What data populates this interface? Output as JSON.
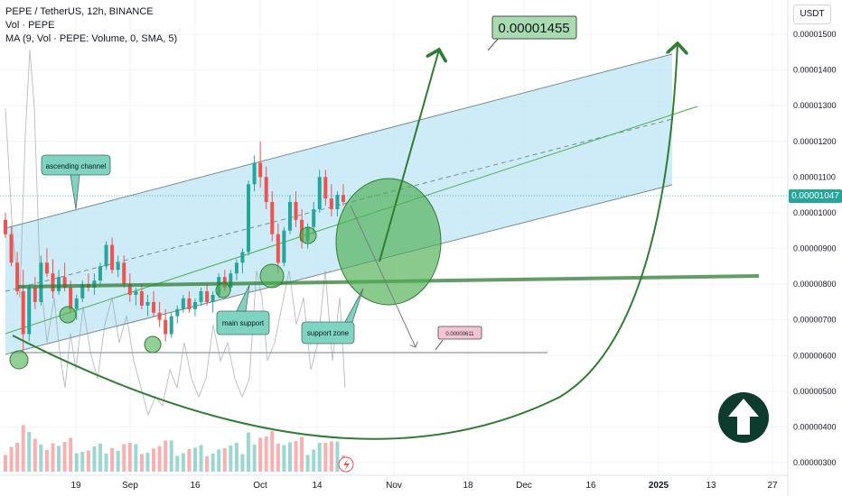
{
  "legend": {
    "symbol_line": "PEPE / TetherUS, 12h, BINANCE",
    "volume_line": "Vol · PEPE",
    "ma_line": "MA (9, Vol · PEPE: Volume, 0, SMA, 5)"
  },
  "currency": "USDT",
  "last_price": "0.00001047",
  "annotations": {
    "target": "0.00001455",
    "ascending_channel": "ascending channel",
    "main_support": "main support",
    "support_zone": "support zone",
    "low_target": "0.00000611"
  },
  "colors": {
    "channel_fill": "#bde4f5",
    "up_candle": "#26a69a",
    "down_candle": "#ef5350",
    "annotation_green": "#2e7d32",
    "label_fill": "#7fd4c1",
    "arrow_badge": "#0d3b2e"
  },
  "chart_data": {
    "type": "candlestick",
    "title": "PEPE / TetherUS, 12h, BINANCE",
    "y_axis": {
      "ticks": [
        "0.00001500",
        "0.00001400",
        "0.00001300",
        "0.00001200",
        "0.00001100",
        "0.00001000",
        "0.00000900",
        "0.00000800",
        "0.00000700",
        "0.00000600",
        "0.00000500",
        "0.00000400",
        "0.00000300"
      ],
      "ylim": [
        2.8e-06,
        1.55e-05
      ]
    },
    "x_axis": {
      "ticks": [
        "19",
        "Sep",
        "16",
        "Oct",
        "14",
        "Nov",
        "18",
        "Dec",
        "16",
        "2025",
        "13",
        "27"
      ]
    },
    "last_price": 1.047e-05,
    "target_price": 1.455e-05,
    "low_target_price": 6.11e-06,
    "series": [
      {
        "name": "PEPE / TetherUS",
        "type": "ohlc",
        "points": [
          [
            9.8e-06,
            1e-05,
            9.3e-06,
            9.4e-06
          ],
          [
            9.4e-06,
            9.6e-06,
            8.5e-06,
            8.6e-06
          ],
          [
            8.6e-06,
            8.9e-06,
            7.7e-06,
            7.8e-06
          ],
          [
            7.8e-06,
            8.4e-06,
            6.1e-06,
            6.6e-06
          ],
          [
            6.6e-06,
            8e-06,
            6.4e-06,
            7.9e-06
          ],
          [
            7.9e-06,
            8.2e-06,
            7.3e-06,
            7.5e-06
          ],
          [
            7.5e-06,
            8.8e-06,
            7.4e-06,
            8.6e-06
          ],
          [
            8.6e-06,
            9e-06,
            8.2e-06,
            8.3e-06
          ],
          [
            8.3e-06,
            8.7e-06,
            7.6e-06,
            7.8e-06
          ],
          [
            7.8e-06,
            8.4e-06,
            7.7e-06,
            8.2e-06
          ],
          [
            8.2e-06,
            8.6e-06,
            7.8e-06,
            7.9e-06
          ],
          [
            7.9e-06,
            8.1e-06,
            7.2e-06,
            7.3e-06
          ],
          [
            7.3e-06,
            7.7e-06,
            7e-06,
            7.6e-06
          ],
          [
            7.6e-06,
            8.1e-06,
            7.5e-06,
            8e-06
          ],
          [
            8e-06,
            8.3e-06,
            7.8e-06,
            7.9e-06
          ],
          [
            7.9e-06,
            8.3e-06,
            7.7e-06,
            8.1e-06
          ],
          [
            8.1e-06,
            8.6e-06,
            8e-06,
            8.5e-06
          ],
          [
            8.5e-06,
            9.2e-06,
            8.4e-06,
            9.1e-06
          ],
          [
            9.1e-06,
            9.3e-06,
            8.3e-06,
            8.4e-06
          ],
          [
            8.4e-06,
            8.8e-06,
            8.2e-06,
            8.6e-06
          ],
          [
            8.6e-06,
            8.8e-06,
            7.9e-06,
            8e-06
          ],
          [
            8e-06,
            8.3e-06,
            7.5e-06,
            7.7e-06
          ],
          [
            7.7e-06,
            7.9e-06,
            7.4e-06,
            7.8e-06
          ],
          [
            7.8e-06,
            8e-06,
            7.3e-06,
            7.4e-06
          ],
          [
            7.4e-06,
            7.7e-06,
            7.1e-06,
            7.5e-06
          ],
          [
            7.5e-06,
            7.8e-06,
            7.1e-06,
            7.2e-06
          ],
          [
            7.2e-06,
            7.5e-06,
            6.8e-06,
            7e-06
          ],
          [
            7e-06,
            7.3e-06,
            6.4e-06,
            6.6e-06
          ],
          [
            6.6e-06,
            7.2e-06,
            6.5e-06,
            7.1e-06
          ],
          [
            7.1e-06,
            7.4e-06,
            6.9e-06,
            7.3e-06
          ],
          [
            7.3e-06,
            7.7e-06,
            7.2e-06,
            7.6e-06
          ],
          [
            7.6e-06,
            7.8e-06,
            7.2e-06,
            7.3e-06
          ],
          [
            7.3e-06,
            7.6e-06,
            7.1e-06,
            7.5e-06
          ],
          [
            7.5e-06,
            7.9e-06,
            7.4e-06,
            7.8e-06
          ],
          [
            7.8e-06,
            8e-06,
            7.4e-06,
            7.5e-06
          ],
          [
            7.5e-06,
            7.8e-06,
            7.2e-06,
            7.7e-06
          ],
          [
            7.7e-06,
            8.3e-06,
            7.6e-06,
            8.2e-06
          ],
          [
            8.2e-06,
            8.4e-06,
            7.8e-06,
            7.9e-06
          ],
          [
            7.9e-06,
            8.4e-06,
            7.8e-06,
            8.3e-06
          ],
          [
            8.3e-06,
            8.7e-06,
            8.1e-06,
            8.6e-06
          ],
          [
            8.6e-06,
            9e-06,
            8.3e-06,
            8.9e-06
          ],
          [
            8.9e-06,
            1.09e-05,
            8.8e-06,
            1.08e-05
          ],
          [
            1.08e-05,
            1.16e-05,
            1.06e-05,
            1.14e-05
          ],
          [
            1.14e-05,
            1.2e-05,
            1.07e-05,
            1.1e-05
          ],
          [
            1.1e-05,
            1.13e-05,
            1.01e-05,
            1.03e-05
          ],
          [
            1.03e-05,
            1.06e-05,
            9.2e-06,
            9.4e-06
          ],
          [
            9.4e-06,
            9.7e-06,
            8.3e-06,
            8.6e-06
          ],
          [
            8.6e-06,
            9.6e-06,
            8.5e-06,
            9.5e-06
          ],
          [
            9.5e-06,
            1.05e-05,
            9.4e-06,
            1.03e-05
          ],
          [
            1.03e-05,
            1.06e-05,
            9.6e-06,
            9.8e-06
          ],
          [
            9.8e-06,
            1.01e-05,
            9e-06,
            9.2e-06
          ],
          [
            9.2e-06,
            9.7e-06,
            9e-06,
            9.6e-06
          ],
          [
            9.6e-06,
            1.03e-05,
            9.4e-06,
            1.01e-05
          ],
          [
            1.01e-05,
            1.12e-05,
            1e-05,
            1.1e-05
          ],
          [
            1.1e-05,
            1.12e-05,
            1.02e-05,
            1.04e-05
          ],
          [
            1.04e-05,
            1.08e-05,
            9.9e-06,
            1.01e-05
          ],
          [
            1.01e-05,
            1.06e-05,
            9.9e-06,
            1.05e-05
          ],
          [
            1.05e-05,
            1.08e-05,
            1.02e-05,
            1.03e-05
          ]
        ]
      }
    ]
  }
}
